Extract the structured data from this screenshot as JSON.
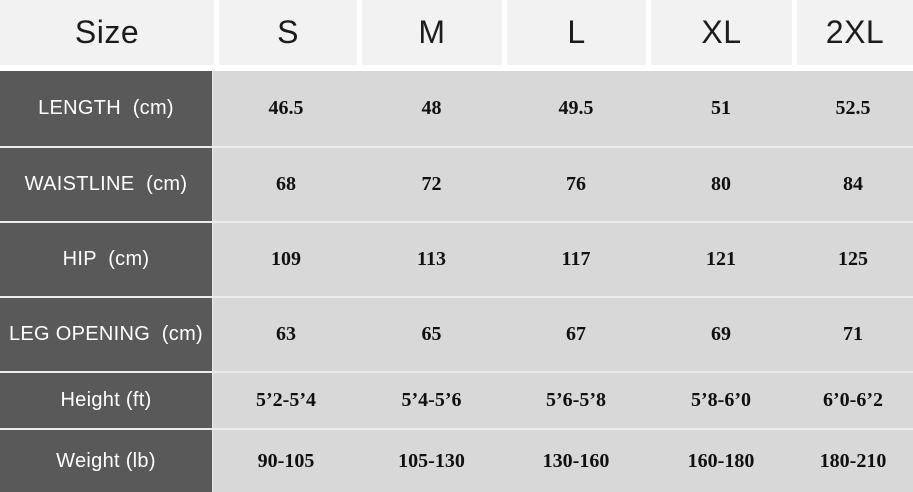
{
  "header": {
    "label": "Size",
    "sizes": [
      "S",
      "M",
      "L",
      "XL",
      "2XL"
    ]
  },
  "rows": [
    {
      "label": "LENGTH  (cm)",
      "values": [
        "46.5",
        "48",
        "49.5",
        "51",
        "52.5"
      ]
    },
    {
      "label": "WAISTLINE  (cm)",
      "values": [
        "68",
        "72",
        "76",
        "80",
        "84"
      ]
    },
    {
      "label": "HIP  (cm)",
      "values": [
        "109",
        "113",
        "117",
        "121",
        "125"
      ]
    },
    {
      "label": "LEG OPENING  (cm)",
      "values": [
        "63",
        "65",
        "67",
        "69",
        "71"
      ]
    },
    {
      "label": "Height (ft)",
      "values": [
        "5’2-5’4",
        "5’4-5’6",
        "5’6-5’8",
        "5’8-6’0",
        "6’0-6’2"
      ]
    },
    {
      "label": "Weight (lb)",
      "values": [
        "90-105",
        "105-130",
        "130-160",
        "160-180",
        "180-210"
      ]
    }
  ],
  "colors": {
    "header_bg": "#f2f2f2",
    "header_text": "#1c1c1c",
    "label_bg": "#595959",
    "label_text": "#ffffff",
    "cell_bg": "#d8d8d8",
    "value_text": "#101010",
    "separator": "#ececec"
  },
  "chart_data": {
    "type": "table",
    "title": "Size",
    "columns": [
      "Size",
      "S",
      "M",
      "L",
      "XL",
      "2XL"
    ],
    "rows": [
      [
        "LENGTH (cm)",
        "46.5",
        "48",
        "49.5",
        "51",
        "52.5"
      ],
      [
        "WAISTLINE (cm)",
        "68",
        "72",
        "76",
        "80",
        "84"
      ],
      [
        "HIP (cm)",
        "109",
        "113",
        "117",
        "121",
        "125"
      ],
      [
        "LEG OPENING (cm)",
        "63",
        "65",
        "67",
        "69",
        "71"
      ],
      [
        "Height (ft)",
        "5’2-5’4",
        "5’4-5’6",
        "5’6-5’8",
        "5’8-6’0",
        "6’0-6’2"
      ],
      [
        "Weight (lb)",
        "90-105",
        "105-130",
        "130-160",
        "160-180",
        "180-210"
      ]
    ]
  }
}
